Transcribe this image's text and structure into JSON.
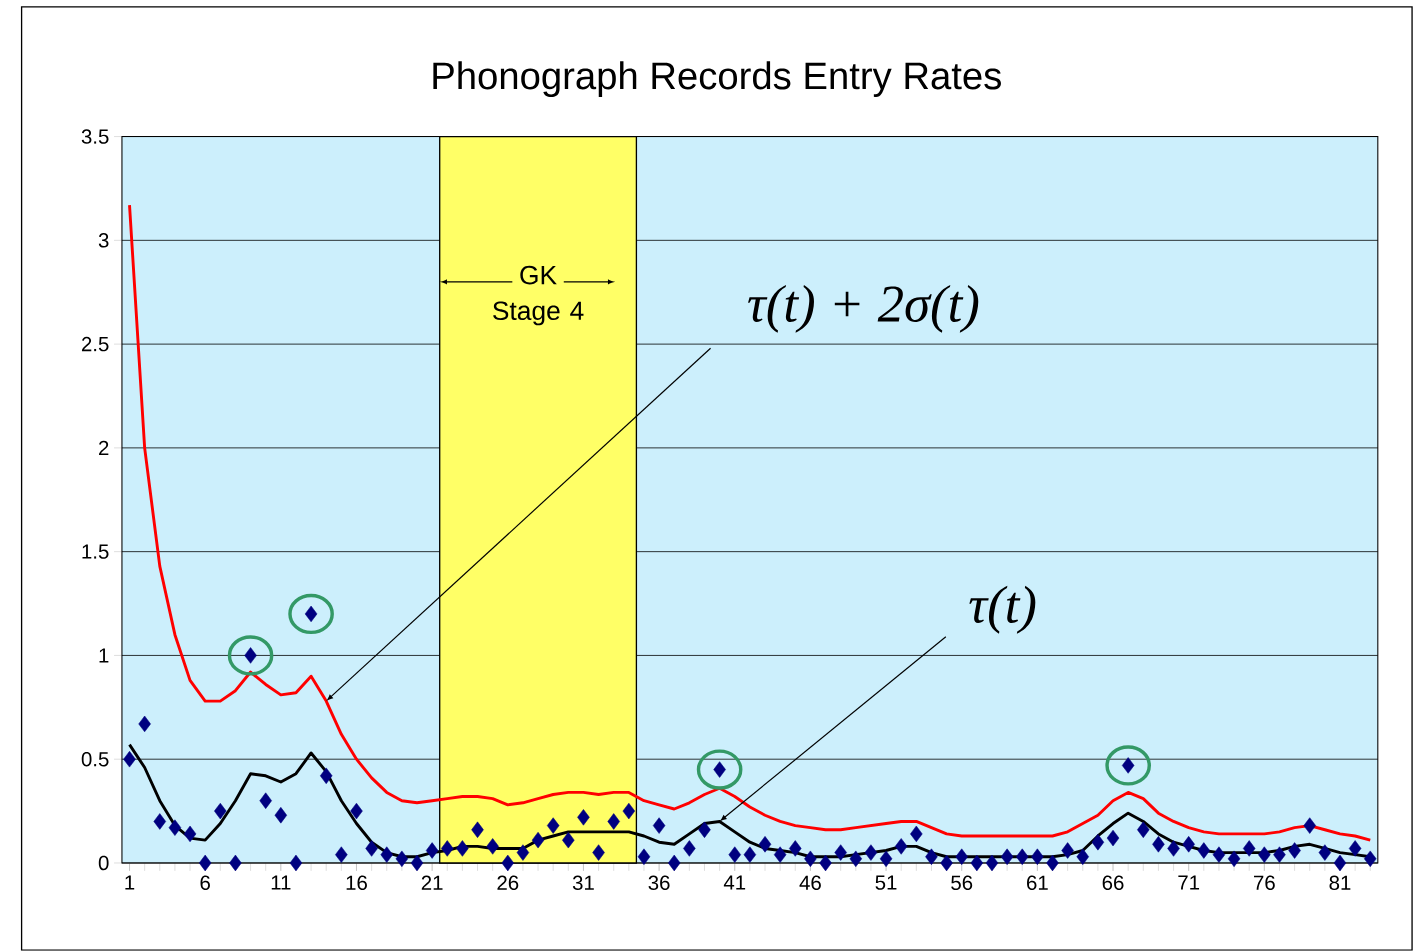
{
  "chart_data": {
    "type": "scatter",
    "title": "Phonograph Records  Entry Rates",
    "x": [
      1,
      2,
      3,
      4,
      5,
      6,
      7,
      8,
      9,
      10,
      11,
      12,
      13,
      14,
      15,
      16,
      17,
      18,
      19,
      20,
      21,
      22,
      23,
      24,
      25,
      26,
      27,
      28,
      29,
      30,
      31,
      32,
      33,
      34,
      35,
      36,
      37,
      38,
      39,
      40,
      41,
      42,
      43,
      44,
      45,
      46,
      47,
      48,
      49,
      50,
      51,
      52,
      53,
      54,
      55,
      56,
      57,
      58,
      59,
      60,
      61,
      62,
      63,
      64,
      65,
      66,
      67,
      68,
      69,
      70,
      71,
      72,
      73,
      74,
      75,
      76,
      77,
      78,
      79,
      80,
      81,
      82,
      83
    ],
    "series": [
      {
        "marker": "diamond",
        "color": "#000080",
        "values": [
          0.5,
          0.67,
          0.2,
          0.17,
          0.14,
          0.0,
          0.25,
          0.0,
          1.0,
          0.3,
          0.23,
          0.0,
          1.2,
          0.42,
          0.04,
          0.25,
          0.07,
          0.04,
          0.02,
          0.0,
          0.06,
          0.07,
          0.07,
          0.16,
          0.08,
          0.0,
          0.05,
          0.11,
          0.18,
          0.11,
          0.22,
          0.05,
          0.2,
          0.25,
          0.03,
          0.18,
          0.0,
          0.07,
          0.16,
          0.45,
          0.04,
          0.04,
          0.09,
          0.04,
          0.07,
          0.02,
          0.0,
          0.05,
          0.02,
          0.05,
          0.02,
          0.08,
          0.14,
          0.03,
          0.0,
          0.03,
          0.0,
          0.0,
          0.03,
          0.03,
          0.03,
          0.0,
          0.06,
          0.03,
          0.1,
          0.12,
          0.47,
          0.16,
          0.09,
          0.07,
          0.09,
          0.06,
          0.04,
          0.02,
          0.07,
          0.04,
          0.04,
          0.06,
          0.18,
          0.05,
          0.0,
          0.07,
          0.02
        ]
      },
      {
        "type": "line",
        "marker": "none",
        "line_style": "solid",
        "color": "#000000",
        "values": [
          0.57,
          0.46,
          0.3,
          0.18,
          0.12,
          0.11,
          0.19,
          0.3,
          0.43,
          0.42,
          0.39,
          0.43,
          0.53,
          0.44,
          0.3,
          0.19,
          0.1,
          0.05,
          0.03,
          0.03,
          0.05,
          0.06,
          0.08,
          0.08,
          0.07,
          0.07,
          0.07,
          0.11,
          0.13,
          0.15,
          0.15,
          0.15,
          0.15,
          0.15,
          0.13,
          0.1,
          0.09,
          0.14,
          0.19,
          0.2,
          0.15,
          0.1,
          0.07,
          0.06,
          0.05,
          0.03,
          0.03,
          0.03,
          0.04,
          0.05,
          0.06,
          0.08,
          0.08,
          0.05,
          0.03,
          0.03,
          0.03,
          0.03,
          0.03,
          0.03,
          0.03,
          0.03,
          0.04,
          0.06,
          0.13,
          0.19,
          0.24,
          0.2,
          0.14,
          0.1,
          0.08,
          0.06,
          0.05,
          0.05,
          0.05,
          0.05,
          0.06,
          0.08,
          0.09,
          0.07,
          0.05,
          0.04,
          0.03
        ]
      },
      {
        "type": "line",
        "marker": "none",
        "line_style": "solid",
        "color": "#ff0000",
        "values": [
          3.17,
          2.0,
          1.43,
          1.1,
          0.88,
          0.78,
          0.78,
          0.83,
          0.92,
          0.86,
          0.81,
          0.82,
          0.9,
          0.78,
          0.62,
          0.5,
          0.41,
          0.34,
          0.3,
          0.29,
          0.3,
          0.31,
          0.32,
          0.32,
          0.31,
          0.28,
          0.29,
          0.31,
          0.33,
          0.34,
          0.34,
          0.33,
          0.34,
          0.34,
          0.3,
          0.28,
          0.26,
          0.29,
          0.33,
          0.36,
          0.32,
          0.27,
          0.23,
          0.2,
          0.18,
          0.17,
          0.16,
          0.16,
          0.17,
          0.18,
          0.19,
          0.2,
          0.2,
          0.17,
          0.14,
          0.13,
          0.13,
          0.13,
          0.13,
          0.13,
          0.13,
          0.13,
          0.15,
          0.19,
          0.23,
          0.3,
          0.34,
          0.31,
          0.24,
          0.2,
          0.17,
          0.15,
          0.14,
          0.14,
          0.14,
          0.14,
          0.15,
          0.17,
          0.18,
          0.16,
          0.14,
          0.13,
          0.11
        ]
      }
    ],
    "xlim": [
      0.5,
      83.5
    ],
    "xticks": [
      1,
      6,
      11,
      16,
      21,
      26,
      31,
      36,
      41,
      46,
      51,
      56,
      61,
      66,
      71,
      76,
      81
    ],
    "ylim": [
      0,
      3.5
    ],
    "yticks": [
      0,
      0.5,
      1,
      1.5,
      2,
      2.5,
      3,
      3.5
    ],
    "grid": "y",
    "bands": [
      {
        "axis": "x",
        "from": 21.5,
        "to": 34.5,
        "label": "GK Stage 4",
        "color": "#ffff66"
      }
    ],
    "annotations": [
      {
        "text": "τ(t) + 2σ(t)",
        "x": 14,
        "y": 0.78
      },
      {
        "text": "τ(t)",
        "x": 40,
        "y": 0.2
      }
    ]
  }
}
